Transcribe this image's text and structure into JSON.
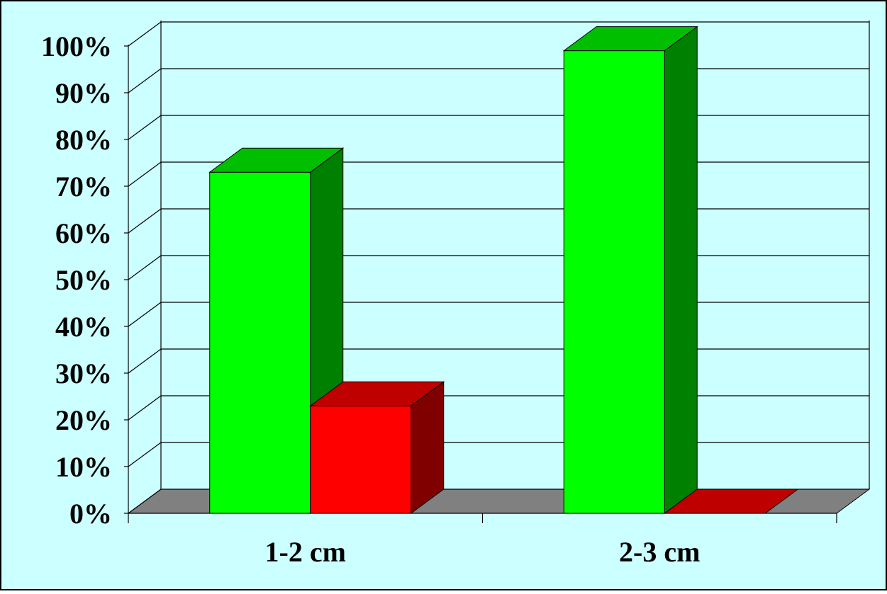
{
  "chart_data": {
    "type": "bar",
    "categories": [
      "1-2 cm",
      "2-3 cm"
    ],
    "series": [
      {
        "values": [
          73,
          99
        ],
        "color": "#00FF00"
      },
      {
        "values": [
          23,
          0
        ],
        "color": "#FF0000"
      }
    ],
    "ylim": [
      0,
      100
    ],
    "yticks": [
      "0%",
      "10%",
      "20%",
      "30%",
      "40%",
      "50%",
      "60%",
      "70%",
      "80%",
      "90%",
      "100%"
    ],
    "grid": true,
    "style": "3d-column",
    "colors": {
      "background": "#CCFFFF",
      "floor": "#808080",
      "border": "#000000"
    }
  }
}
